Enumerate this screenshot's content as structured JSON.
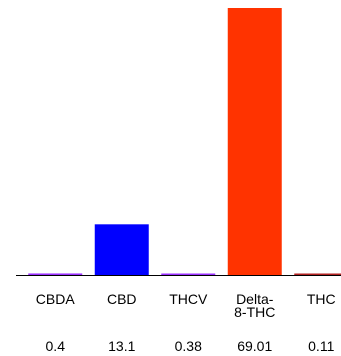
{
  "chart_data": {
    "type": "bar",
    "categories": [
      {
        "lines": [
          "CBDA"
        ]
      },
      {
        "lines": [
          "CBD"
        ]
      },
      {
        "lines": [
          "THCV"
        ]
      },
      {
        "lines": [
          "Delta-",
          "8-THC"
        ]
      },
      {
        "lines": [
          "THC"
        ]
      }
    ],
    "values": [
      0.4,
      13.1,
      0.38,
      69.01,
      0.11
    ],
    "value_labels": [
      "0.4",
      "13.1",
      "0.38",
      "69.01",
      "0.11"
    ],
    "colors": [
      "#9b30ff",
      "#0000ff",
      "#9b30ff",
      "#ff3300",
      "#b22222"
    ],
    "title": "",
    "xlabel": "",
    "ylabel": "",
    "ylim": [
      0,
      69.01
    ],
    "grid": false,
    "legend": "none"
  }
}
